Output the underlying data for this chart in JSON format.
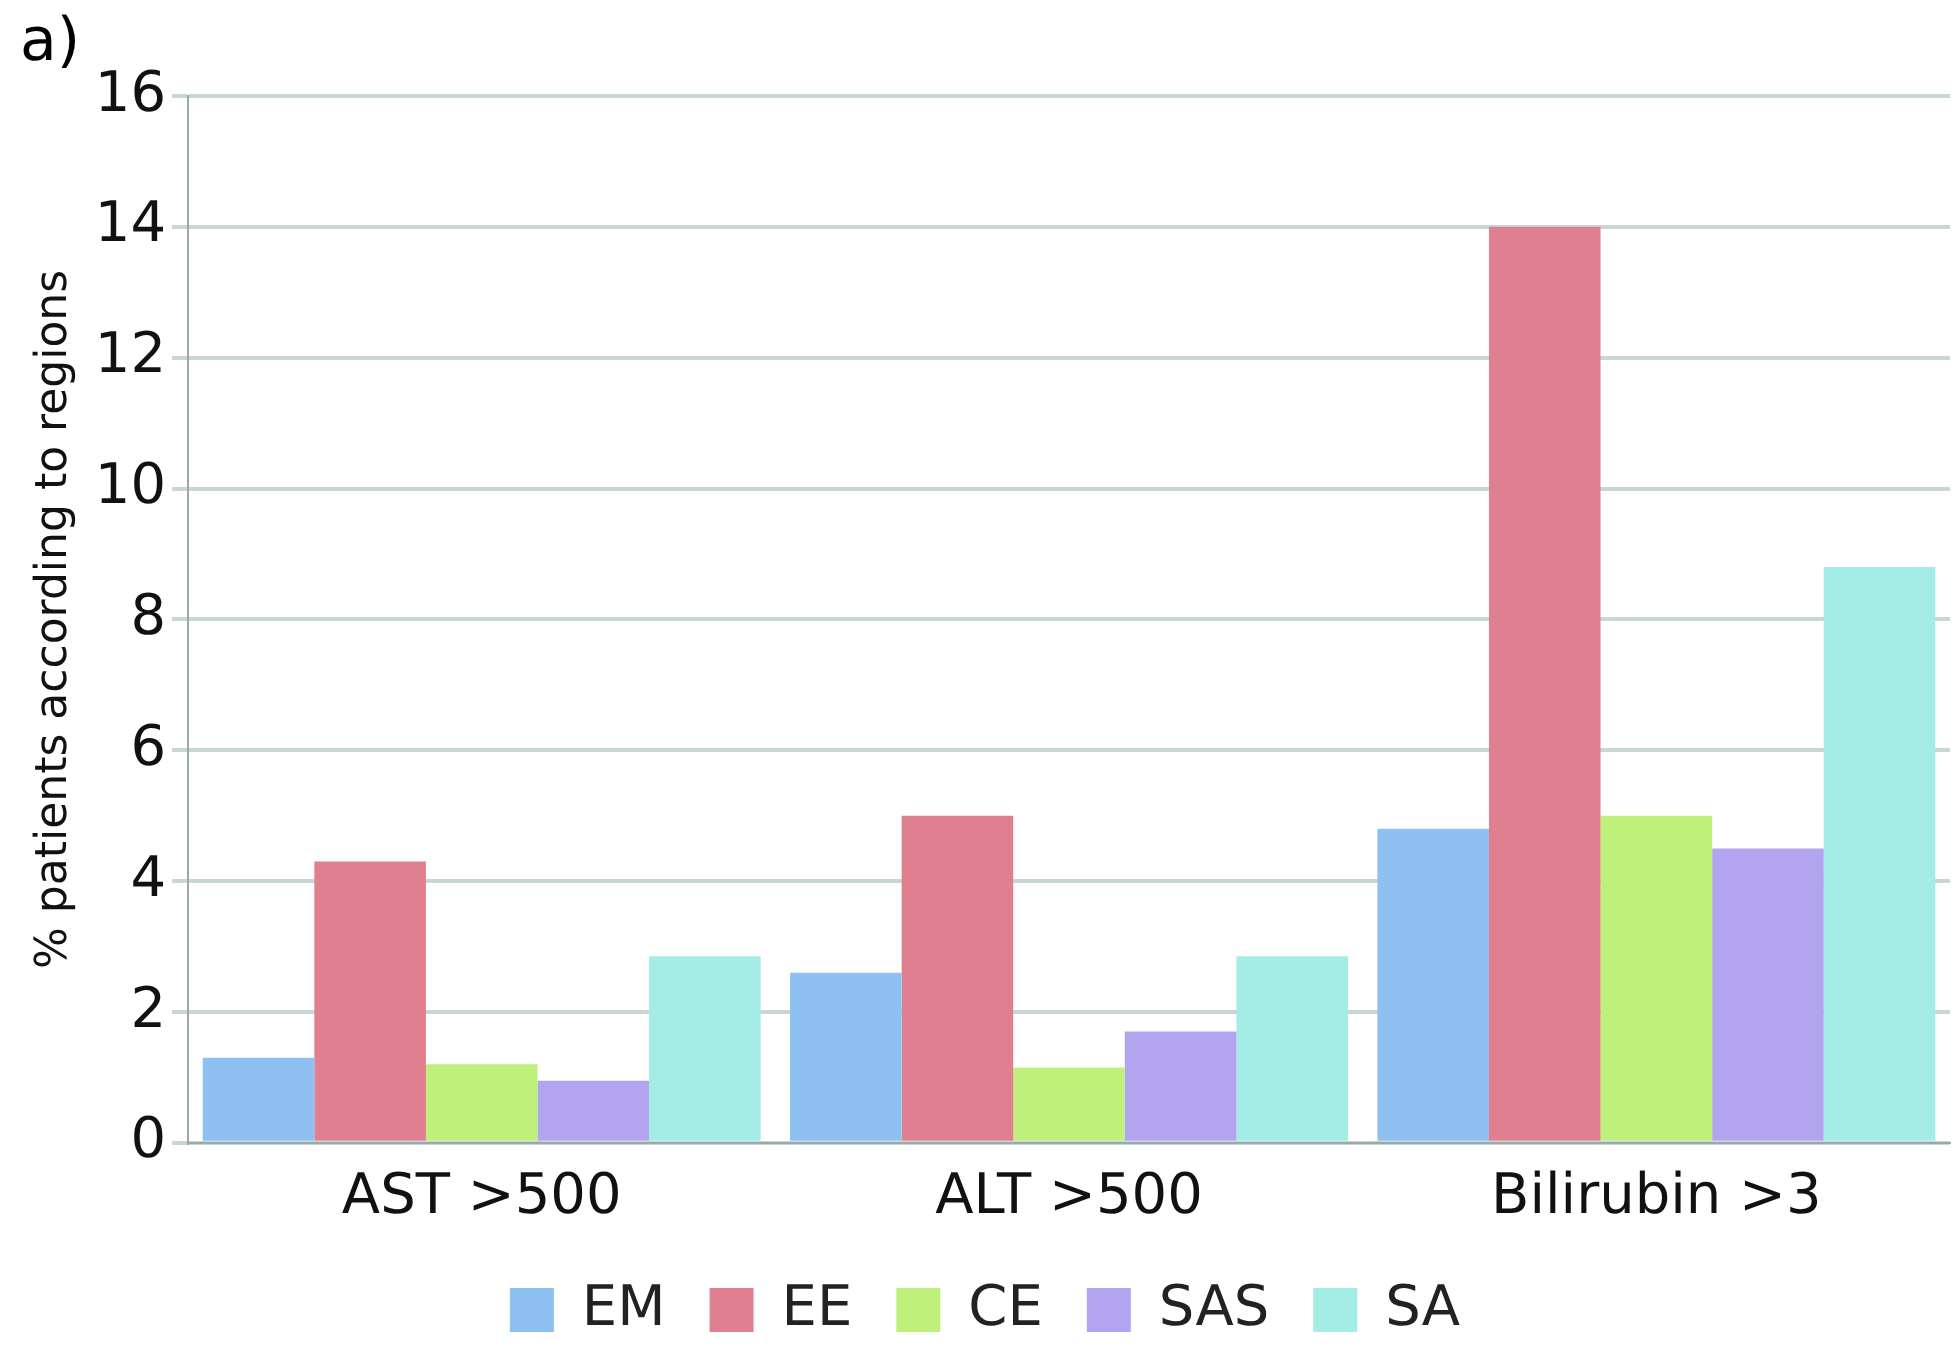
{
  "chart_data": {
    "type": "bar",
    "title": "a)",
    "ylabel": "% patients according to regions",
    "categories": [
      "AST >500",
      "ALT >500",
      "Bilirubin >3"
    ],
    "series": [
      {
        "name": "EM",
        "color": "#8fc0f2",
        "values": [
          1.3,
          2.6,
          4.8
        ]
      },
      {
        "name": "EE",
        "color": "#e07f90",
        "values": [
          4.3,
          5.0,
          14.0
        ]
      },
      {
        "name": "CE",
        "color": "#c0f07c",
        "values": [
          1.2,
          1.15,
          5.0
        ]
      },
      {
        "name": "SAS",
        "color": "#b3a4f0",
        "values": [
          0.95,
          1.7,
          4.5
        ]
      },
      {
        "name": "SA",
        "color": "#a4ece6",
        "values": [
          2.85,
          2.85,
          8.8
        ]
      }
    ],
    "ylim": [
      0,
      16
    ],
    "yticks": [
      0,
      2,
      4,
      6,
      8,
      10,
      12,
      14,
      16
    ],
    "grid": "y",
    "legend": "bottom"
  }
}
